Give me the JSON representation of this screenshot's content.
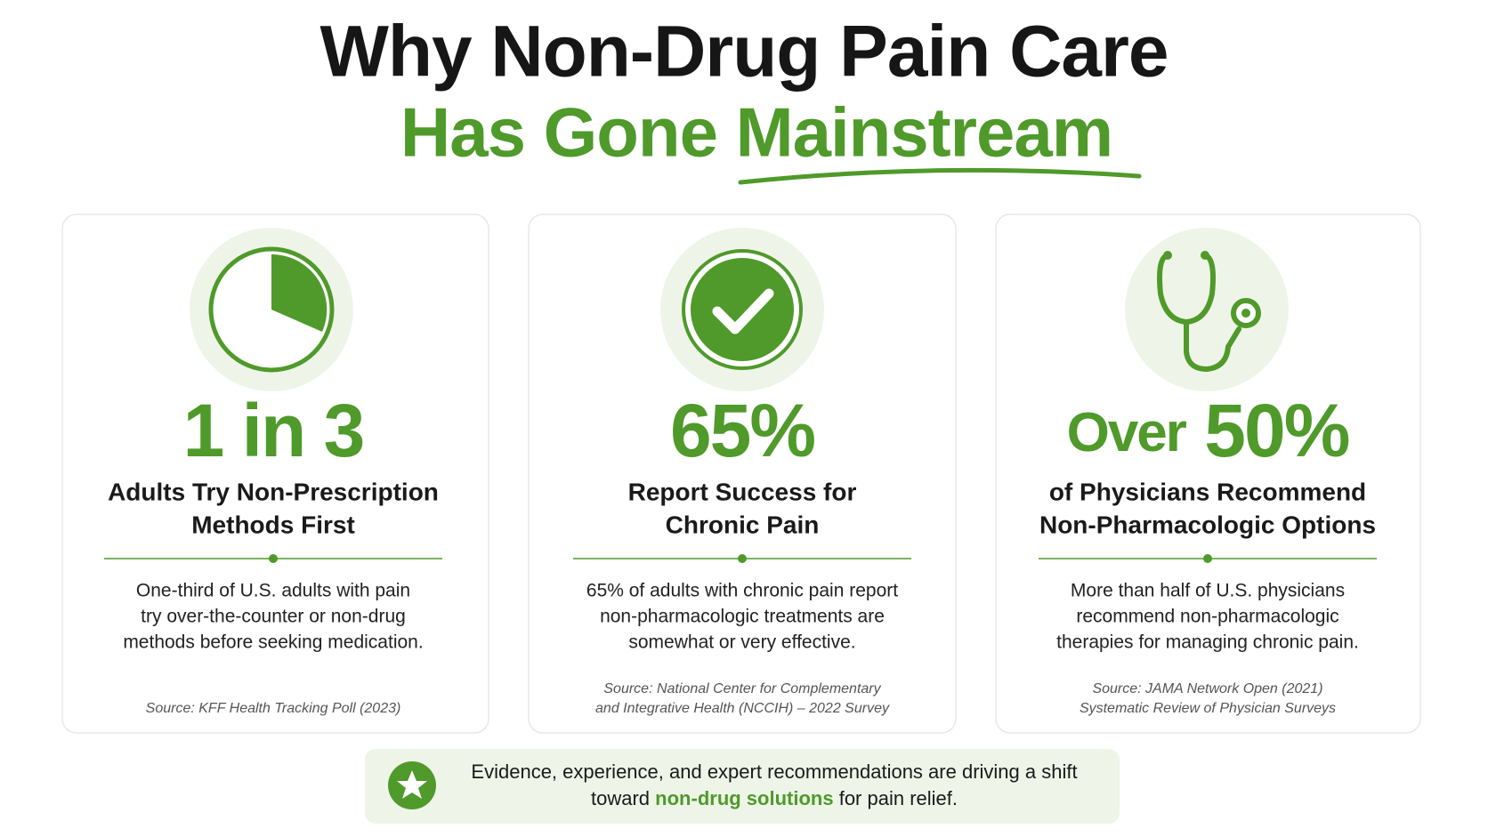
{
  "header": {
    "title_line1": "Why Non-Drug Pain Care",
    "title_line2": "Has Gone Mainstream"
  },
  "cards": [
    {
      "stat_prefix": "",
      "stat": "1 in 3",
      "headline": [
        "Adults Try Non-Prescription",
        "Methods First"
      ],
      "body": [
        "One-third of U.S. adults with pain",
        "try over-the-counter or non-drug",
        "methods before seeking medication."
      ],
      "source": [
        "Source: KFF Health Tracking Poll (2023)"
      ]
    },
    {
      "stat_prefix": "",
      "stat": "65%",
      "headline": [
        "Report Success for",
        "Chronic Pain"
      ],
      "body": [
        "65% of adults with chronic pain report",
        "non-pharmacologic treatments are",
        "somewhat or very effective."
      ],
      "source": [
        "Source: National Center for Complementary",
        "and Integrative Health (NCCIH) – 2022 Survey"
      ]
    },
    {
      "stat_prefix": "Over",
      "stat": "50%",
      "headline": [
        "of Physicians Recommend",
        "Non-Pharmacologic Options"
      ],
      "body": [
        "More than half of U.S. physicians",
        "recommend non-pharmacologic",
        "therapies for managing chronic pain."
      ],
      "source": [
        "Source: JAMA Network Open (2021)",
        "Systematic Review of Physician Surveys"
      ]
    }
  ],
  "footer": {
    "line1": "Evidence, experience, and expert recommendations are driving a shift",
    "line2_before": "toward",
    "line2_highlight": "non-drug solutions",
    "line2_after": "for pain relief."
  }
}
